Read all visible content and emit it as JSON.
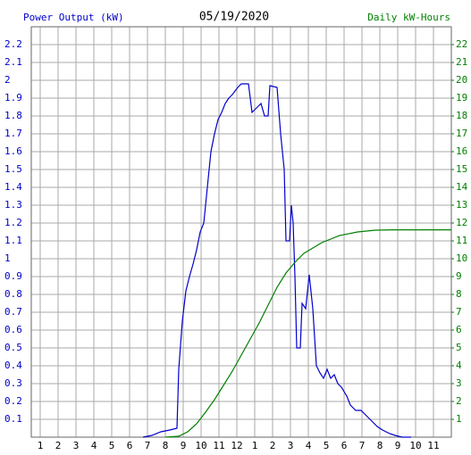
{
  "chart_data": {
    "type": "line",
    "title": "05/19/2020",
    "xlim": [
      0.5,
      24
    ],
    "xticks": [
      1,
      2,
      3,
      4,
      5,
      6,
      7,
      8,
      9,
      10,
      11,
      12,
      {
        "value": 13,
        "label": "1"
      },
      {
        "value": 14,
        "label": "2"
      },
      {
        "value": 15,
        "label": "3"
      },
      {
        "value": 16,
        "label": "4"
      },
      {
        "value": 17,
        "label": "5"
      },
      {
        "value": 18,
        "label": "6"
      },
      {
        "value": 19,
        "label": "7"
      },
      {
        "value": 20,
        "label": "8"
      },
      {
        "value": 21,
        "label": "9"
      },
      {
        "value": 22,
        "label": "10"
      },
      {
        "value": 23,
        "label": "11"
      }
    ],
    "ylim": [
      0,
      2.3
    ],
    "yticks": [
      0.1,
      0.2,
      0.3,
      0.4,
      0.5,
      0.6,
      0.7,
      0.8,
      0.9,
      1.0,
      1.1,
      1.2,
      1.3,
      1.4,
      1.5,
      1.6,
      1.7,
      1.8,
      1.9,
      2.0,
      2.1,
      2.2
    ],
    "y2lim": [
      0,
      23
    ],
    "y2ticks": [
      1,
      2,
      3,
      4,
      5,
      6,
      7,
      8,
      9,
      10,
      11,
      12,
      13,
      14,
      15,
      16,
      17,
      18,
      19,
      20,
      21,
      22
    ],
    "grid": true,
    "series": [
      {
        "name": "Power Output (kW)",
        "color": "#0000cc",
        "x": [
          6.75,
          7.25,
          7.75,
          8.25,
          8.65,
          8.75,
          8.95,
          9.15,
          9.35,
          9.55,
          9.75,
          9.95,
          10.15,
          10.35,
          10.55,
          10.75,
          10.95,
          11.15,
          11.35,
          11.55,
          11.75,
          12.05,
          12.25,
          12.65,
          12.85,
          13.15,
          13.35,
          13.55,
          13.75,
          13.85,
          14.25,
          14.45,
          14.65,
          14.75,
          14.95,
          15.05,
          15.15,
          15.25,
          15.35,
          15.55,
          15.65,
          15.85,
          16.05,
          16.25,
          16.45,
          16.65,
          16.85,
          17.05,
          17.25,
          17.45,
          17.65,
          17.85,
          18.15,
          18.35,
          18.65,
          18.95,
          19.25,
          19.55,
          19.85,
          20.15,
          20.55,
          20.85,
          21.25,
          21.75
        ],
        "values": [
          0.0,
          0.01,
          0.03,
          0.04,
          0.05,
          0.38,
          0.65,
          0.82,
          0.9,
          0.97,
          1.05,
          1.15,
          1.2,
          1.4,
          1.6,
          1.7,
          1.78,
          1.82,
          1.87,
          1.9,
          1.92,
          1.96,
          1.98,
          1.98,
          1.82,
          1.85,
          1.87,
          1.8,
          1.8,
          1.97,
          1.96,
          1.7,
          1.5,
          1.1,
          1.1,
          1.3,
          1.2,
          0.9,
          0.5,
          0.5,
          0.75,
          0.72,
          0.91,
          0.72,
          0.4,
          0.36,
          0.33,
          0.38,
          0.33,
          0.35,
          0.3,
          0.28,
          0.23,
          0.18,
          0.15,
          0.15,
          0.12,
          0.09,
          0.06,
          0.04,
          0.02,
          0.01,
          0.0,
          0.0
        ]
      },
      {
        "name": "Daily kW-Hours",
        "color": "#008000",
        "axis": "y2",
        "x": [
          8.0,
          8.75,
          9.25,
          9.75,
          10.25,
          10.75,
          11.25,
          11.75,
          12.25,
          12.75,
          13.25,
          13.75,
          14.25,
          14.75,
          15.25,
          15.75,
          16.25,
          16.75,
          17.75,
          18.75,
          19.75,
          20.75,
          24
        ],
        "values": [
          0,
          0.05,
          0.3,
          0.75,
          1.4,
          2.1,
          2.9,
          3.7,
          4.6,
          5.5,
          6.4,
          7.4,
          8.4,
          9.2,
          9.8,
          10.3,
          10.6,
          10.9,
          11.3,
          11.5,
          11.6,
          11.62,
          11.62
        ]
      }
    ]
  }
}
